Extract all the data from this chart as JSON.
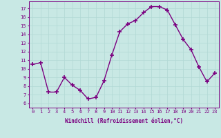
{
  "x": [
    0,
    1,
    2,
    3,
    4,
    5,
    6,
    7,
    8,
    9,
    10,
    11,
    12,
    13,
    14,
    15,
    16,
    17,
    18,
    19,
    20,
    21,
    22,
    23
  ],
  "y": [
    10.5,
    10.7,
    7.3,
    7.3,
    9.0,
    8.1,
    7.5,
    6.5,
    6.7,
    8.6,
    11.6,
    14.3,
    15.2,
    15.6,
    16.5,
    17.2,
    17.2,
    16.8,
    15.1,
    13.4,
    12.2,
    10.2,
    8.5,
    9.5
  ],
  "line_color": "#7B0080",
  "marker": "+",
  "marker_size": 4,
  "marker_lw": 1.2,
  "line_width": 1.0,
  "bg_color": "#c8e8e4",
  "grid_color": "#b0d8d4",
  "xlabel": "Windchill (Refroidissement éolien,°C)",
  "yticks": [
    6,
    7,
    8,
    9,
    10,
    11,
    12,
    13,
    14,
    15,
    16,
    17
  ],
  "ylim": [
    5.5,
    17.8
  ],
  "xlim": [
    -0.5,
    23.5
  ],
  "tick_color": "#7B0080",
  "label_color": "#7B0080",
  "tick_fontsize": 5,
  "xlabel_fontsize": 5.5,
  "figsize": [
    3.2,
    2.0
  ],
  "dpi": 100
}
